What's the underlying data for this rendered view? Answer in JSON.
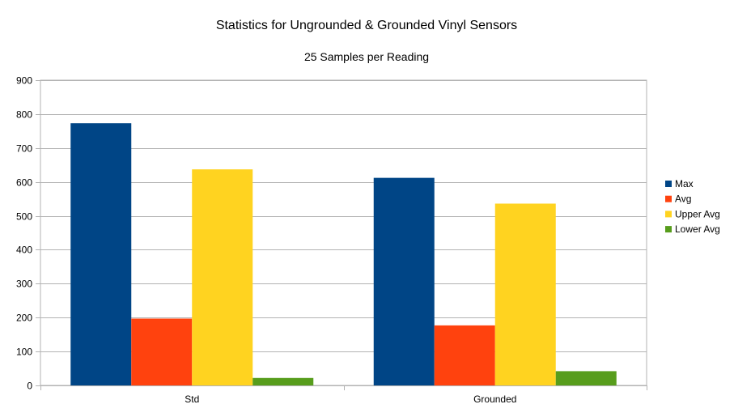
{
  "chart_data": {
    "type": "bar",
    "title": "Statistics for Ungrounded & Grounded Vinyl Sensors",
    "subtitle": "25 Samples per Reading",
    "xlabel": "",
    "ylabel": "",
    "categories": [
      "Std",
      "Grounded"
    ],
    "series": [
      {
        "name": "Max",
        "color": "#004586",
        "values": [
          773,
          612
        ]
      },
      {
        "name": "Avg",
        "color": "#ff420e",
        "values": [
          197,
          177
        ]
      },
      {
        "name": "Upper Avg",
        "color": "#ffd320",
        "values": [
          637,
          536
        ]
      },
      {
        "name": "Lower Avg",
        "color": "#579d1c",
        "values": [
          22,
          42
        ]
      }
    ],
    "ylim": [
      0,
      900
    ],
    "yticks": [
      "0",
      "100",
      "200",
      "300",
      "400",
      "500",
      "600",
      "700",
      "800",
      "900"
    ],
    "grid": true,
    "legend_position": "right"
  }
}
